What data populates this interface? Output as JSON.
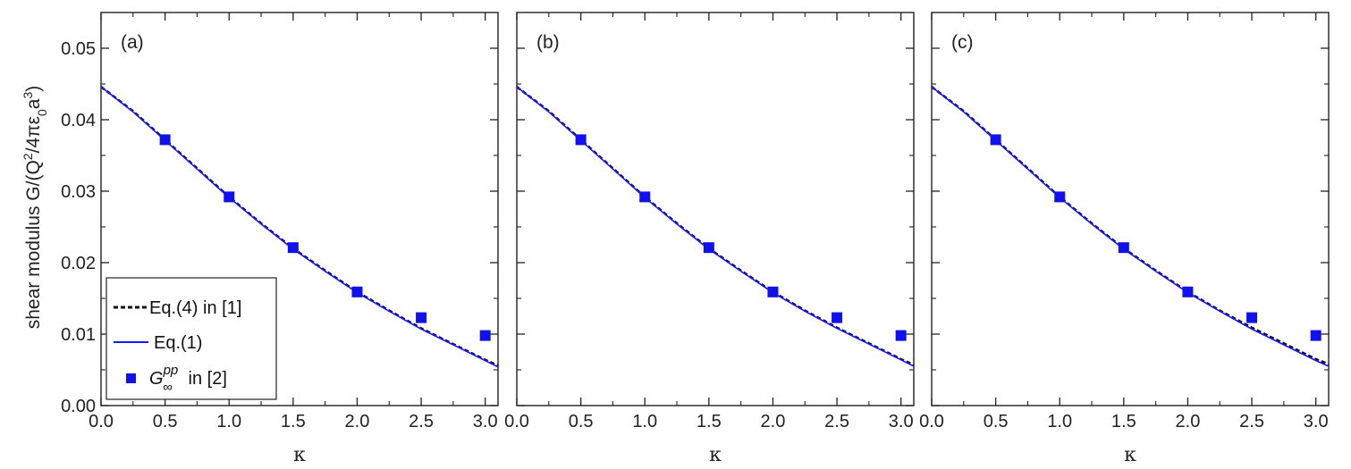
{
  "figure": {
    "ylabel": {
      "prefix": "shear modulus G/(Q",
      "sup1": "2",
      "mid": "/4πε",
      "sub": "0",
      "mid2": "a",
      "sup2": "3",
      "suffix": ")"
    }
  },
  "legend": {
    "dashed_label": "Eq.(4) in [1]",
    "solid_label": "Eq.(1)",
    "marker_G": "G",
    "marker_sup": "pp",
    "marker_sub": "∞",
    "marker_tail": " in [2]"
  },
  "colors": {
    "line_dashed": "#111111",
    "line_solid": "#1a1aff",
    "marker": "#1111ee"
  },
  "chart_data": [
    {
      "type": "line",
      "panel_label": "(a)",
      "xlabel": "κ",
      "xlim": [
        0.0,
        3.1
      ],
      "ylim": [
        0.0,
        0.055
      ],
      "xticks": [
        "0.0",
        "0.5",
        "1.0",
        "1.5",
        "2.0",
        "2.5",
        "3.0"
      ],
      "yticks": [
        "0.00",
        "0.01",
        "0.02",
        "0.03",
        "0.04",
        "0.05"
      ],
      "grid": false,
      "legend_position": "bottom-left",
      "series": [
        {
          "name": "Eq.(4) in [1]",
          "style": "dashed",
          "x": [
            0.0,
            0.25,
            0.5,
            0.75,
            1.0,
            1.25,
            1.5,
            1.75,
            2.0,
            2.25,
            2.5,
            2.75,
            3.0,
            3.1
          ],
          "y": [
            0.0446,
            0.0412,
            0.0372,
            0.0332,
            0.0292,
            0.0255,
            0.022,
            0.0189,
            0.0159,
            0.0133,
            0.0108,
            0.0086,
            0.0064,
            0.0056
          ]
        },
        {
          "name": "Eq.(1)",
          "style": "solid",
          "x": [
            0.0,
            0.25,
            0.5,
            0.75,
            1.0,
            1.25,
            1.5,
            1.75,
            2.0,
            2.25,
            2.5,
            2.75,
            3.0,
            3.1
          ],
          "y": [
            0.0446,
            0.0411,
            0.0371,
            0.0331,
            0.0291,
            0.0254,
            0.0219,
            0.0188,
            0.0158,
            0.0132,
            0.0107,
            0.0085,
            0.0063,
            0.0054
          ]
        },
        {
          "name": "G∞pp in [2]",
          "style": "markers",
          "x": [
            0.5,
            1.0,
            1.5,
            2.0,
            2.5,
            3.0
          ],
          "y": [
            0.0372,
            0.0292,
            0.0221,
            0.0159,
            0.0123,
            0.0098
          ]
        }
      ]
    },
    {
      "type": "line",
      "panel_label": "(b)",
      "xlabel": "κ",
      "xlim": [
        0.0,
        3.1
      ],
      "ylim": [
        0.0,
        0.055
      ],
      "xticks": [
        "0.0",
        "0.5",
        "1.0",
        "1.5",
        "2.0",
        "2.5",
        "3.0"
      ],
      "grid": false,
      "series": [
        {
          "name": "Eq.(4) in [1]",
          "style": "dashed",
          "x": [
            0.0,
            0.25,
            0.5,
            0.75,
            1.0,
            1.25,
            1.5,
            1.75,
            2.0,
            2.25,
            2.5,
            2.75,
            3.0,
            3.1
          ],
          "y": [
            0.0446,
            0.0412,
            0.0372,
            0.0332,
            0.0292,
            0.0255,
            0.022,
            0.0189,
            0.0159,
            0.0133,
            0.0109,
            0.0087,
            0.0065,
            0.0057
          ]
        },
        {
          "name": "Eq.(1)",
          "style": "solid",
          "x": [
            0.0,
            0.25,
            0.5,
            0.75,
            1.0,
            1.25,
            1.5,
            1.75,
            2.0,
            2.25,
            2.5,
            2.75,
            3.0,
            3.1
          ],
          "y": [
            0.0446,
            0.0411,
            0.0371,
            0.0331,
            0.0291,
            0.0254,
            0.0219,
            0.0188,
            0.0158,
            0.0132,
            0.0108,
            0.0086,
            0.0064,
            0.0055
          ]
        },
        {
          "name": "G∞pp in [2]",
          "style": "markers",
          "x": [
            0.5,
            1.0,
            1.5,
            2.0,
            2.5,
            3.0
          ],
          "y": [
            0.0372,
            0.0292,
            0.0221,
            0.0159,
            0.0123,
            0.0098
          ]
        }
      ]
    },
    {
      "type": "line",
      "panel_label": "(c)",
      "xlabel": "κ",
      "xlim": [
        0.0,
        3.1
      ],
      "ylim": [
        0.0,
        0.055
      ],
      "xticks": [
        "0.0",
        "0.5",
        "1.0",
        "1.5",
        "2.0",
        "2.5",
        "3.0"
      ],
      "grid": false,
      "series": [
        {
          "name": "Eq.(4) in [1]",
          "style": "dashed",
          "x": [
            0.0,
            0.25,
            0.5,
            0.75,
            1.0,
            1.25,
            1.5,
            1.75,
            2.0,
            2.25,
            2.5,
            2.75,
            3.0,
            3.1
          ],
          "y": [
            0.0446,
            0.0412,
            0.0372,
            0.0332,
            0.0292,
            0.0255,
            0.022,
            0.0189,
            0.0159,
            0.0133,
            0.0109,
            0.0087,
            0.0065,
            0.0058
          ]
        },
        {
          "name": "Eq.(1)",
          "style": "solid",
          "x": [
            0.0,
            0.25,
            0.5,
            0.75,
            1.0,
            1.25,
            1.5,
            1.75,
            2.0,
            2.25,
            2.5,
            2.75,
            3.0,
            3.1
          ],
          "y": [
            0.0446,
            0.0411,
            0.0371,
            0.0331,
            0.0291,
            0.0254,
            0.0219,
            0.0188,
            0.0158,
            0.0132,
            0.0107,
            0.0085,
            0.0063,
            0.0055
          ]
        },
        {
          "name": "G∞pp in [2]",
          "style": "markers",
          "x": [
            0.5,
            1.0,
            1.5,
            2.0,
            2.5,
            3.0
          ],
          "y": [
            0.0372,
            0.0292,
            0.0221,
            0.0159,
            0.0123,
            0.0098
          ]
        }
      ]
    }
  ]
}
